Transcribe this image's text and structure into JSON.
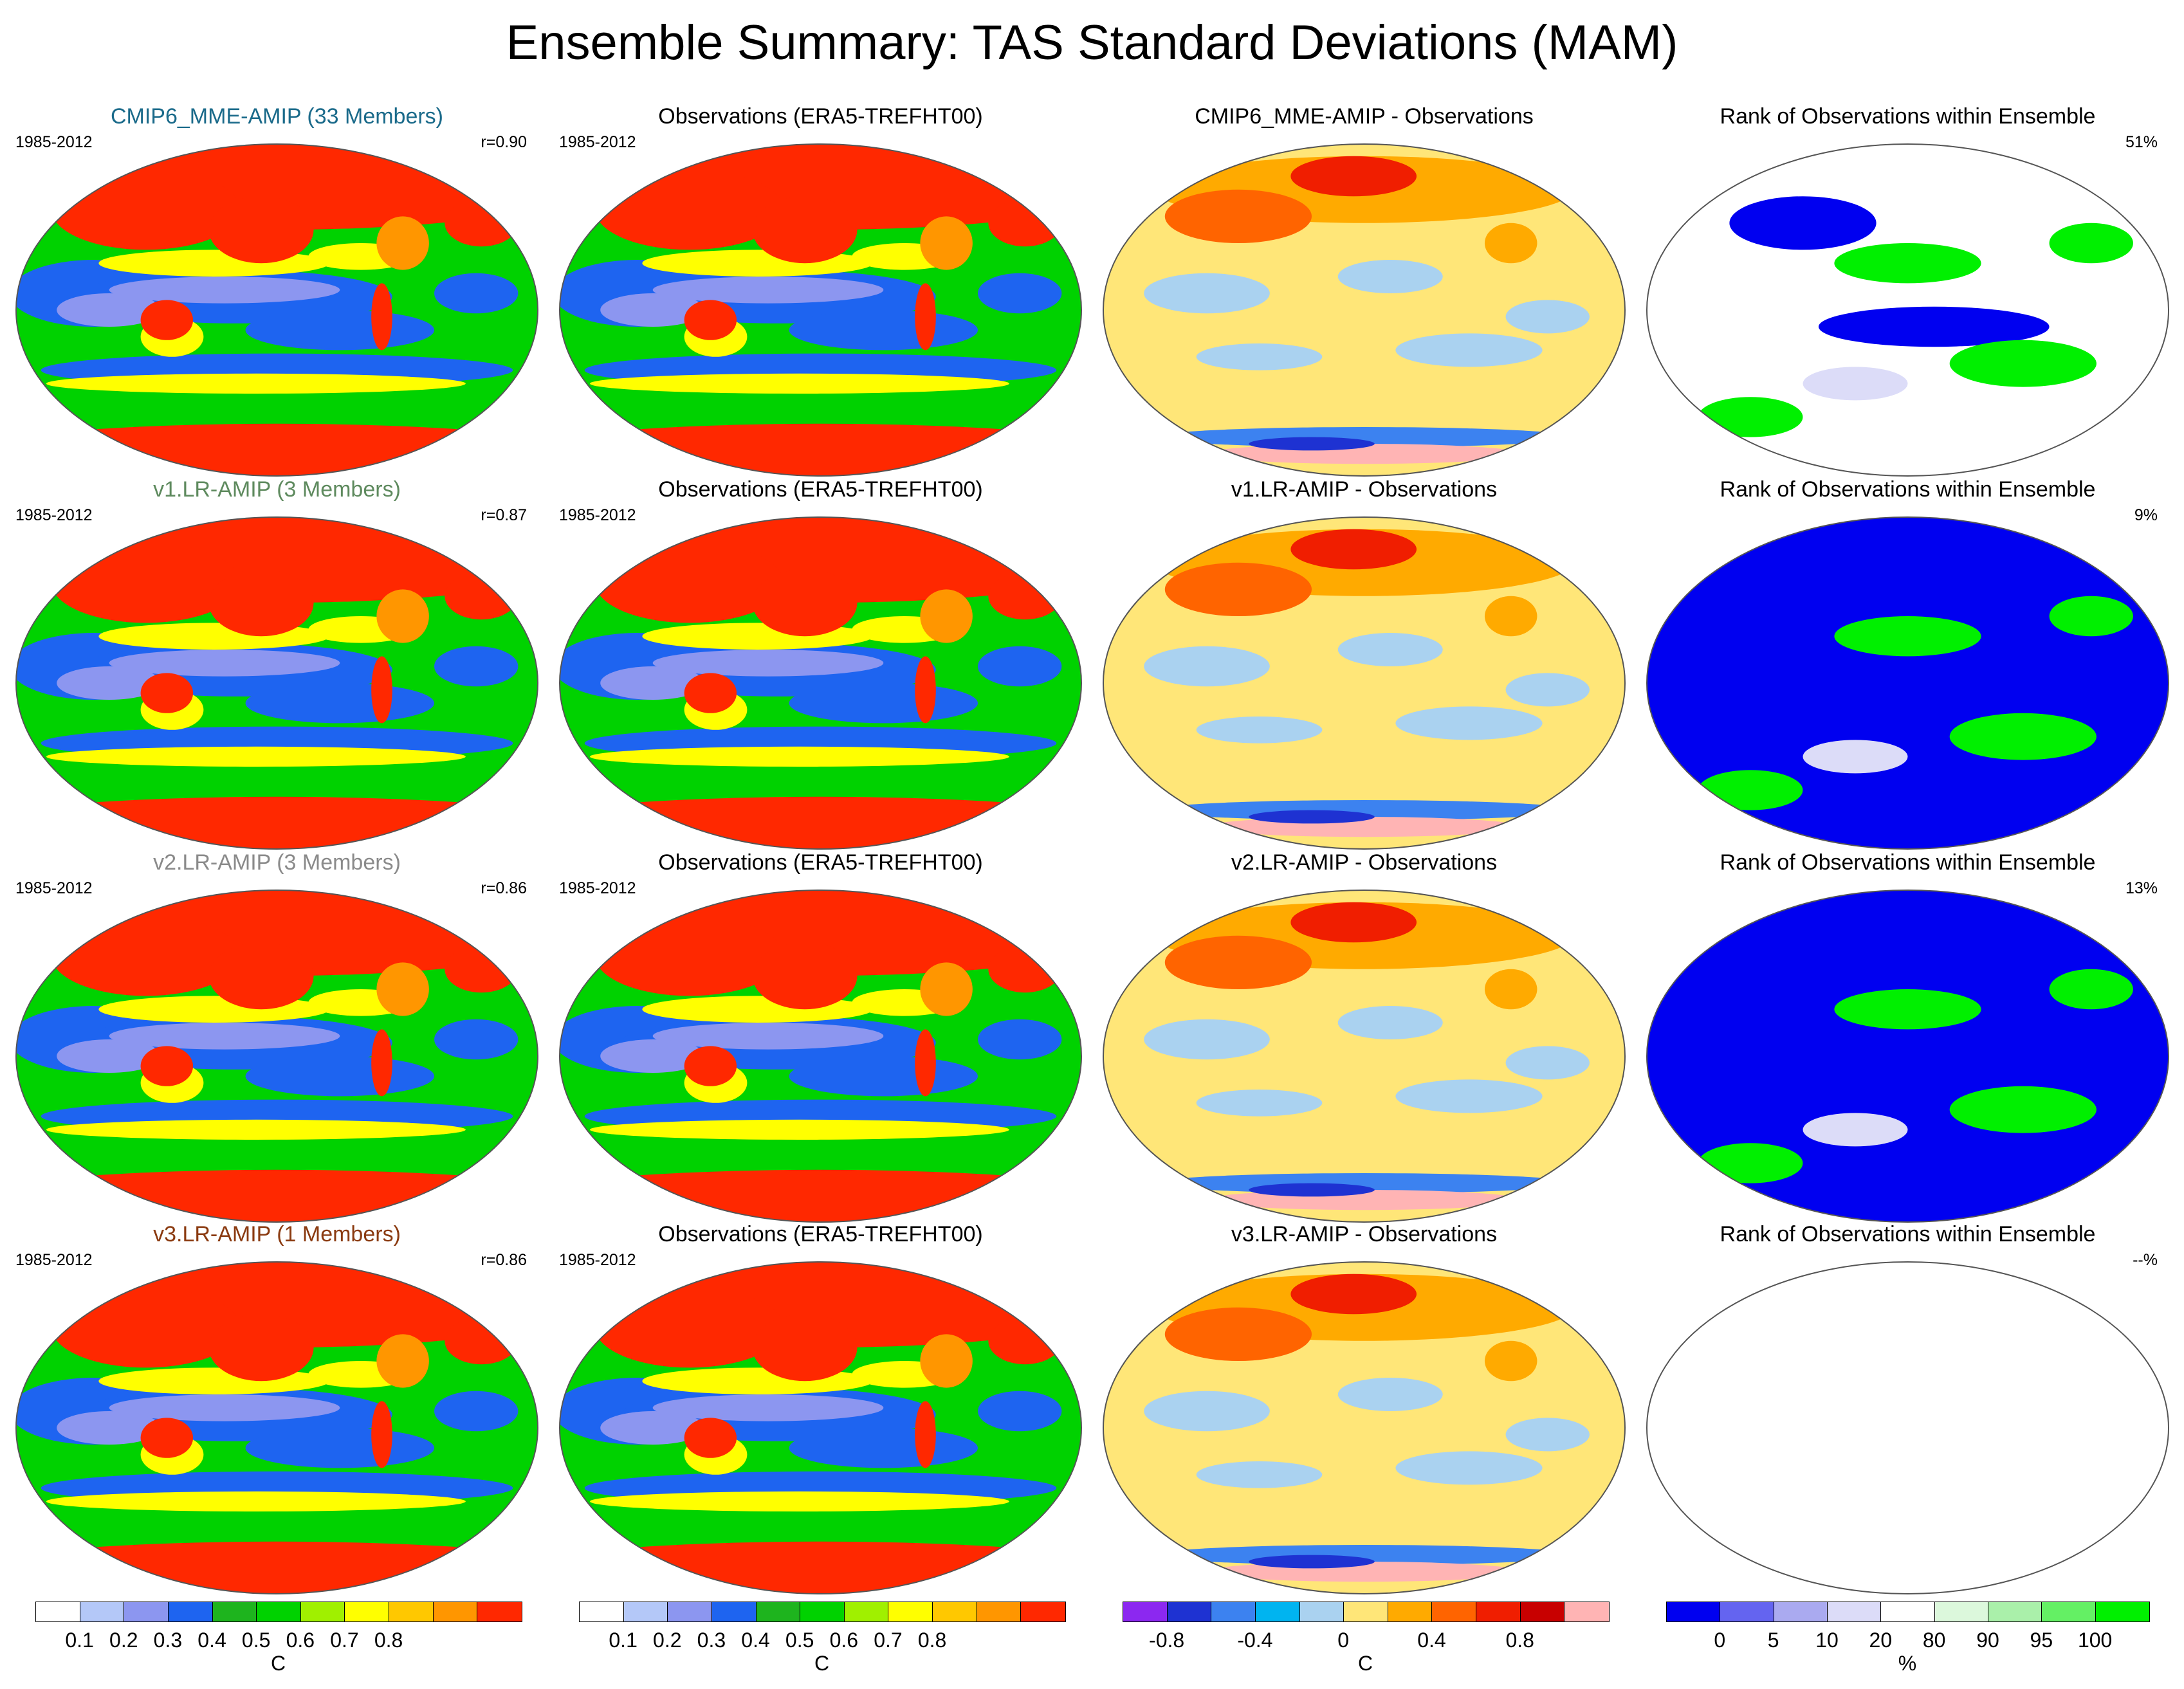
{
  "title": "Ensemble Summary: TAS Standard Deviations (MAM)",
  "rows": [
    {
      "model": {
        "title": "CMIP6_MME-AMIP (33 Members)",
        "title_color": "#1a6a8a",
        "period": "1985-2012",
        "corr": "r=0.90"
      },
      "obs": {
        "title": "Observations (ERA5-TREFHT00)",
        "period": "1985-2012"
      },
      "diff": {
        "title": "CMIP6_MME-AMIP - Observations"
      },
      "rank": {
        "title": "Rank of Observations within Ensemble",
        "pct": "51%"
      }
    },
    {
      "model": {
        "title": "v1.LR-AMIP (3 Members)",
        "title_color": "#5e8a5e",
        "period": "1985-2012",
        "corr": "r=0.87"
      },
      "obs": {
        "title": "Observations (ERA5-TREFHT00)",
        "period": "1985-2012"
      },
      "diff": {
        "title": "v1.LR-AMIP - Observations"
      },
      "rank": {
        "title": "Rank of Observations within Ensemble",
        "pct": "9%"
      }
    },
    {
      "model": {
        "title": "v2.LR-AMIP (3 Members)",
        "title_color": "#8a8a8a",
        "period": "1985-2012",
        "corr": "r=0.86"
      },
      "obs": {
        "title": "Observations (ERA5-TREFHT00)",
        "period": "1985-2012"
      },
      "diff": {
        "title": "v2.LR-AMIP - Observations"
      },
      "rank": {
        "title": "Rank of Observations within Ensemble",
        "pct": "13%"
      }
    },
    {
      "model": {
        "title": "v3.LR-AMIP (1 Members)",
        "title_color": "#8a3a10",
        "period": "1985-2012",
        "corr": "r=0.86"
      },
      "obs": {
        "title": "Observations (ERA5-TREFHT00)",
        "period": "1985-2012"
      },
      "diff": {
        "title": "v3.LR-AMIP - Observations"
      },
      "rank": {
        "title": "Rank of Observations within Ensemble",
        "pct": "--%"
      }
    }
  ],
  "colorbars": {
    "std": {
      "colors": [
        "#ffffff",
        "#b4c8f8",
        "#8c96f0",
        "#1e64f0",
        "#1eb41e",
        "#00d200",
        "#a0f000",
        "#ffff00",
        "#ffc800",
        "#ff9600",
        "#ff2800"
      ],
      "ticks": [
        "0.1",
        "0.2",
        "0.3",
        "0.4",
        "0.5",
        "0.6",
        "0.7",
        "0.8"
      ],
      "unit": "C"
    },
    "diff": {
      "colors": [
        "#8c28f0",
        "#1e32d2",
        "#3c82f0",
        "#00b4f0",
        "#aad2f0",
        "#ffe678",
        "#ffaa00",
        "#ff6400",
        "#f01e00",
        "#c80000",
        "#ffb4b4"
      ],
      "ticks": [
        "-0.8",
        "-0.4",
        "0",
        "0.4",
        "0.8"
      ],
      "unit": "C"
    },
    "rank": {
      "colors": [
        "#0000f0",
        "#6464f0",
        "#aaaaf0",
        "#dcdcf8",
        "#ffffff",
        "#dcf8dc",
        "#aaf0aa",
        "#64f064",
        "#00f000"
      ],
      "ticks": [
        "0",
        "5",
        "10",
        "20",
        "80",
        "90",
        "95",
        "100"
      ],
      "unit": "%"
    }
  }
}
